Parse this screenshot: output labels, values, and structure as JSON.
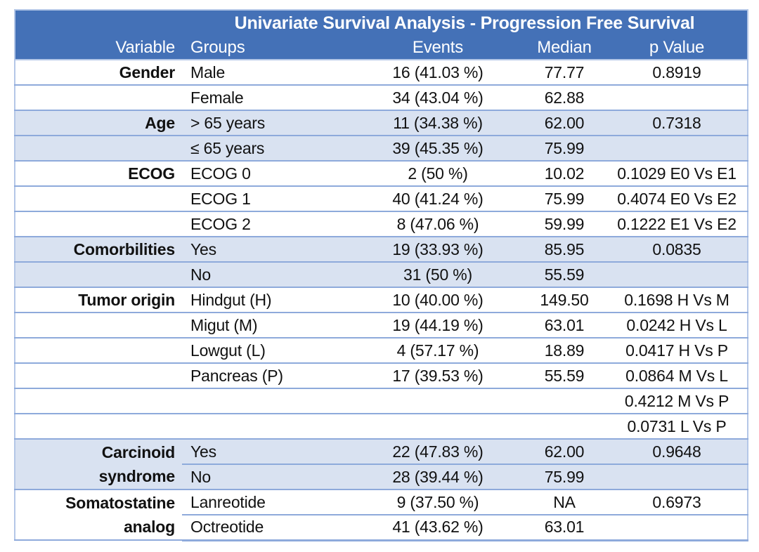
{
  "title": "Univariate Survival Analysis - Progression Free Survival",
  "columns": {
    "variable": "Variable",
    "groups": "Groups",
    "events": "Events",
    "median": "Median",
    "p_value": "p Value"
  },
  "colors": {
    "header_bg": "#4471B7",
    "header_text": "#FFFFFF",
    "band_bg": "#D9E2F1",
    "row_line": "#8EAADB",
    "outer_border": "#B4C7E7",
    "text": "#111111",
    "page_bg": "#FFFFFF"
  },
  "chart_data": {
    "type": "table",
    "title": "Univariate Survival Analysis - Progression Free Survival",
    "columns": [
      "Variable",
      "Groups",
      "Events",
      "Median",
      "p Value"
    ]
  },
  "table": {
    "rows": [
      {
        "variable": "Gender",
        "group": "Male",
        "events": "16 (41.03 %)",
        "median": "77.77",
        "p": "0.8919",
        "band": false
      },
      {
        "variable": "",
        "group": "Female",
        "events": "34 (43.04 %)",
        "median": "62.88",
        "p": "",
        "band": false
      },
      {
        "variable": "Age",
        "group": "> 65 years",
        "events": "11 (34.38 %)",
        "median": "62.00",
        "p": "0.7318",
        "band": true
      },
      {
        "variable": "",
        "group": "≤ 65 years",
        "events": "39 (45.35 %)",
        "median": "75.99",
        "p": "",
        "band": true
      },
      {
        "variable": "ECOG",
        "group": "ECOG 0",
        "events": "2 (50 %)",
        "median": "10.02",
        "p": "0.1029 E0 Vs E1",
        "band": false
      },
      {
        "variable": "",
        "group": "ECOG 1",
        "events": "40 (41.24 %)",
        "median": "75.99",
        "p": "0.4074 E0 Vs E2",
        "band": false
      },
      {
        "variable": "",
        "group": "ECOG 2",
        "events": "8 (47.06 %)",
        "median": "59.99",
        "p": "0.1222 E1 Vs E2",
        "band": false
      },
      {
        "variable": "Comorbilities",
        "group": "Yes",
        "events": "19 (33.93 %)",
        "median": "85.95",
        "p": "0.0835",
        "band": true
      },
      {
        "variable": "",
        "group": "No",
        "events": "31 (50 %)",
        "median": "55.59",
        "p": "",
        "band": true
      },
      {
        "variable": "Tumor origin",
        "group": "Hindgut (H)",
        "events": "10 (40.00 %)",
        "median": "149.50",
        "p": "0.1698 H Vs M",
        "band": false
      },
      {
        "variable": "",
        "group": "Migut (M)",
        "events": "19 (44.19 %)",
        "median": "63.01",
        "p": "0.0242 H Vs L",
        "band": false
      },
      {
        "variable": "",
        "group": "Lowgut (L)",
        "events": "4 (57.17 %)",
        "median": "18.89",
        "p": "0.0417 H Vs P",
        "band": false
      },
      {
        "variable": "",
        "group": "Pancreas (P)",
        "events": "17 (39.53 %)",
        "median": "55.59",
        "p": "0.0864 M Vs L",
        "band": false
      },
      {
        "variable": "",
        "group": "",
        "events": "",
        "median": "",
        "p": "0.4212 M Vs P",
        "band": false
      },
      {
        "variable": "",
        "group": "",
        "events": "",
        "median": "",
        "p": "0.0731 L Vs P",
        "band": false
      },
      {
        "variable": "Carcinoid\nsyndrome",
        "var_rowspan": 2,
        "group": "Yes",
        "events": "22 (47.83 %)",
        "median": "62.00",
        "p": "0.9648",
        "band": true
      },
      {
        "var_skip": true,
        "group": "No",
        "events": "28 (39.44 %)",
        "median": "75.99",
        "p": "",
        "band": true
      },
      {
        "variable": "Somatostatine\nanalog",
        "var_rowspan": 2,
        "group": "Lanreotide",
        "events": "9 (37.50 %)",
        "median": "NA",
        "p": "0.6973",
        "band": false
      },
      {
        "var_skip": true,
        "group": "Octreotide",
        "events": "41 (43.62 %)",
        "median": "63.01",
        "p": "",
        "band": false
      }
    ]
  }
}
